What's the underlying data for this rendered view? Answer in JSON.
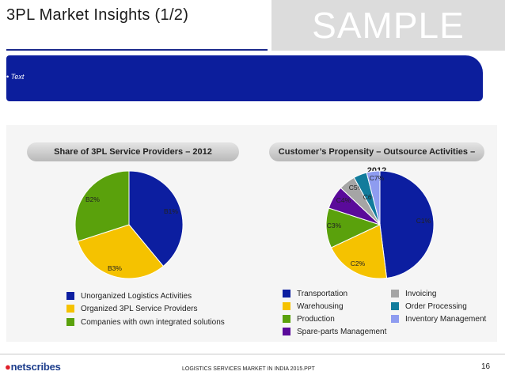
{
  "header": {
    "title": "3PL Market Insights (1/2)",
    "watermark": "SAMPLE"
  },
  "banner": {
    "text": "• Text"
  },
  "chart_data": [
    {
      "type": "pie",
      "title": "Share of 3PL Service Providers – 2012",
      "slices": [
        {
          "label": "B1%",
          "legend": "Unorganized Logistics Activities",
          "value": 39,
          "color": "#0c1ea0"
        },
        {
          "label": "B3%",
          "legend": "Organized 3PL Service Providers",
          "value": 31,
          "color": "#f5c200"
        },
        {
          "label": "B2%",
          "legend": "Companies with own integrated solutions",
          "value": 30,
          "color": "#5aa10c"
        }
      ]
    },
    {
      "type": "pie",
      "title": "Customer’s Propensity – Outsource Activities – 2012",
      "slices": [
        {
          "label": "C1%",
          "legend": "Transportation",
          "value": 48,
          "color": "#0c1ea0"
        },
        {
          "label": "C2%",
          "legend": "Warehousing",
          "value": 20,
          "color": "#f5c200"
        },
        {
          "label": "C3%",
          "legend": "Production",
          "value": 12,
          "color": "#5aa10c"
        },
        {
          "label": "C4%",
          "legend": "Spare-parts Management",
          "value": 7,
          "color": "#5a0a9a"
        },
        {
          "label": "C5%",
          "legend": "Invoicing",
          "value": 5,
          "color": "#a5a5a5"
        },
        {
          "label": "C6%",
          "legend": "Order Processing",
          "value": 4,
          "color": "#127c9c"
        },
        {
          "label": "C7%",
          "legend": "Inventory Management",
          "value": 4,
          "color": "#8e9cf0"
        }
      ]
    }
  ],
  "footer": {
    "logo_main": "netscribes",
    "center_text": "LOGISTICS SERVICES MARKET IN INDIA 2015.PPT",
    "page_number": "16"
  }
}
